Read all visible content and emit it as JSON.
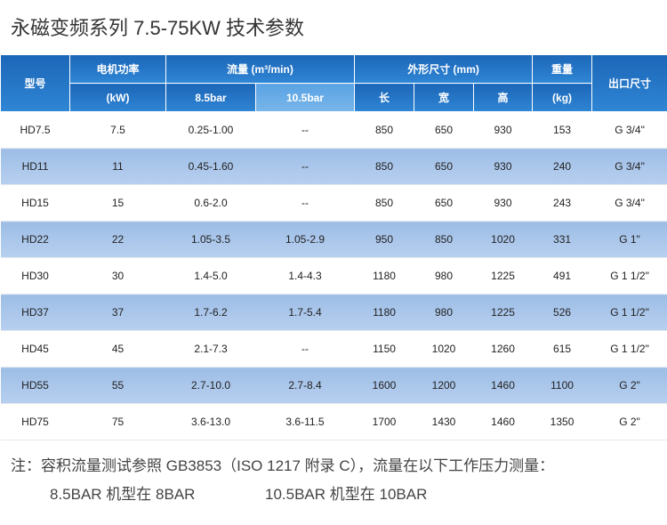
{
  "title": "永磁变频系列 7.5-75KW 技术参数",
  "table": {
    "header": {
      "model": "型号",
      "power": "电机功率",
      "power_unit": "(kW)",
      "flow": "流量 (m³/min)",
      "flow_85": "8.5bar",
      "flow_105": "10.5bar",
      "dims": "外形尺寸 (mm)",
      "length": "长",
      "width": "宽",
      "height": "高",
      "weight": "重量",
      "weight_unit": "(kg)",
      "outlet": "出口尺寸"
    },
    "rows": [
      [
        "HD7.5",
        "7.5",
        "0.25-1.00",
        "--",
        "850",
        "650",
        "930",
        "153",
        "G 3/4\""
      ],
      [
        "HD11",
        "11",
        "0.45-1.60",
        "--",
        "850",
        "650",
        "930",
        "240",
        "G 3/4\""
      ],
      [
        "HD15",
        "15",
        "0.6-2.0",
        "--",
        "850",
        "650",
        "930",
        "243",
        "G 3/4\""
      ],
      [
        "HD22",
        "22",
        "1.05-3.5",
        "1.05-2.9",
        "950",
        "850",
        "1020",
        "331",
        "G 1\""
      ],
      [
        "HD30",
        "30",
        "1.4-5.0",
        "1.4-4.3",
        "1180",
        "980",
        "1225",
        "491",
        "G 1 1/2\""
      ],
      [
        "HD37",
        "37",
        "1.7-6.2",
        "1.7-5.4",
        "1180",
        "980",
        "1225",
        "526",
        "G 1 1/2\""
      ],
      [
        "HD45",
        "45",
        "2.1-7.3",
        "--",
        "1150",
        "1020",
        "1260",
        "615",
        "G 1 1/2\""
      ],
      [
        "HD55",
        "55",
        "2.7-10.0",
        "2.7-8.4",
        "1600",
        "1200",
        "1460",
        "1100",
        "G 2\""
      ],
      [
        "HD75",
        "75",
        "3.6-13.0",
        "3.6-11.5",
        "1700",
        "1430",
        "1460",
        "1350",
        "G 2\""
      ]
    ]
  },
  "notes": {
    "line1": "注：容积流量测试参照 GB3853（ISO 1217 附录 C），流量在以下工作压力测量：",
    "line2a": "8.5BAR 机型在 8BAR",
    "line2b": "10.5BAR 机型在 10BAR"
  }
}
